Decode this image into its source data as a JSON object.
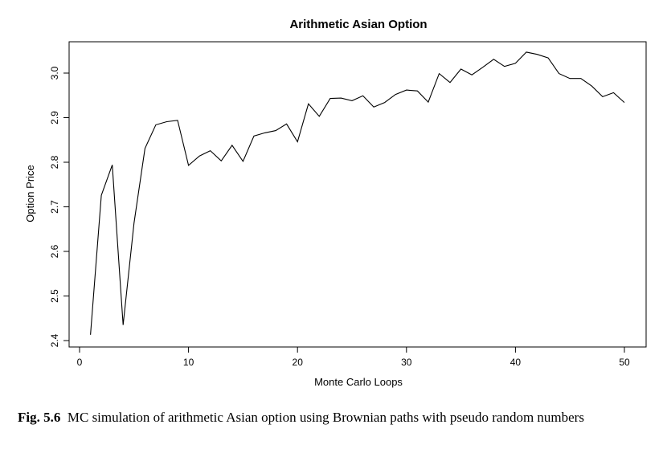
{
  "chart_data": {
    "type": "line",
    "title": "Arithmetic Asian Option",
    "xlabel": "Monte Carlo Loops",
    "ylabel": "Option Price",
    "xlim": [
      0,
      50
    ],
    "ylim": [
      2.4,
      3.0
    ],
    "xticks": [
      0,
      10,
      20,
      30,
      40,
      50
    ],
    "yticks": [
      "2.4",
      "2.5",
      "2.6",
      "2.7",
      "2.8",
      "2.9",
      "3.0"
    ],
    "grid": false,
    "series": [
      {
        "x": [
          1,
          2,
          3,
          4,
          5,
          6,
          7,
          8,
          9,
          10,
          11,
          12,
          13,
          14,
          15,
          16,
          17,
          18,
          19,
          20,
          21,
          22,
          23,
          24,
          25,
          26,
          27,
          28,
          29,
          30,
          31,
          32,
          33,
          34,
          35,
          36,
          37,
          38,
          39,
          40,
          41,
          42,
          43,
          44,
          45,
          46,
          47,
          48,
          49,
          50
        ],
        "values": [
          2.413,
          2.726,
          2.794,
          2.435,
          2.664,
          2.831,
          2.884,
          2.891,
          2.894,
          2.793,
          2.814,
          2.826,
          2.803,
          2.838,
          2.802,
          2.859,
          2.866,
          2.871,
          2.886,
          2.846,
          2.931,
          2.903,
          2.943,
          2.944,
          2.938,
          2.949,
          2.924,
          2.934,
          2.952,
          2.962,
          2.96,
          2.935,
          2.999,
          2.979,
          3.009,
          2.996,
          3.013,
          3.031,
          3.015,
          3.022,
          3.047,
          3.042,
          3.034,
          2.999,
          2.988,
          2.988,
          2.971,
          2.947,
          2.956,
          2.934
        ],
        "color": "#000000"
      }
    ]
  },
  "caption": {
    "label": "Fig. 5.6",
    "text": "MC simulation of arithmetic Asian option using Brownian paths with pseudo random numbers"
  }
}
